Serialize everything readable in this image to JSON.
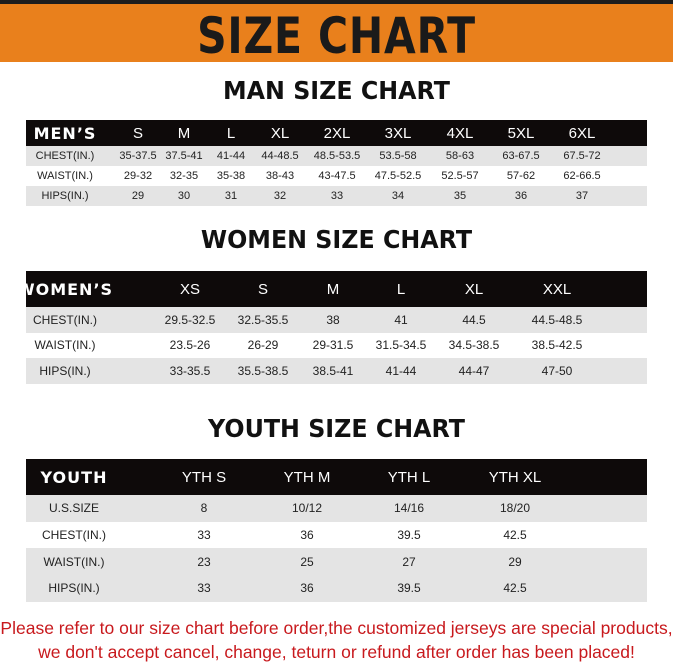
{
  "banner": {
    "title": "SIZE CHART",
    "color": "#e9801c"
  },
  "men": {
    "title": "MAN SIZE CHART",
    "header": [
      "MEN’S",
      "S",
      "M",
      "L",
      "XL",
      "2XL",
      "3XL",
      "4XL",
      "5XL",
      "6XL"
    ],
    "rows": [
      [
        "CHEST(IN.)",
        "35-37.5",
        "37.5-41",
        "41-44",
        "44-48.5",
        "48.5-53.5",
        "53.5-58",
        "58-63",
        "63-67.5",
        "67.5-72"
      ],
      [
        "WAIST(IN.)",
        "29-32",
        "32-35",
        "35-38",
        "38-43",
        "43-47.5",
        "47.5-52.5",
        "52.5-57",
        "57-62",
        "62-66.5"
      ],
      [
        "HIPS(IN.)",
        "29",
        "30",
        "31",
        "32",
        "33",
        "34",
        "35",
        "36",
        "37"
      ]
    ]
  },
  "women": {
    "title": "WOMEN SIZE CHART",
    "header": [
      "WOMEN’S",
      "XS",
      "S",
      "M",
      "L",
      "XL",
      "XXL"
    ],
    "rows": [
      [
        "CHEST(IN.)",
        "29.5-32.5",
        "32.5-35.5",
        "38",
        "41",
        "44.5",
        "44.5-48.5"
      ],
      [
        "WAIST(IN.)",
        "23.5-26",
        "26-29",
        "29-31.5",
        "31.5-34.5",
        "34.5-38.5",
        "38.5-42.5"
      ],
      [
        "HIPS(IN.)",
        "33-35.5",
        "35.5-38.5",
        "38.5-41",
        "41-44",
        "44-47",
        "47-50"
      ]
    ]
  },
  "youth": {
    "title": "YOUTH SIZE CHART",
    "header": [
      "YOUTH",
      "YTH S",
      "YTH M",
      "YTH L",
      "YTH XL"
    ],
    "rows": [
      [
        "U.S.SIZE",
        "8",
        "10/12",
        "14/16",
        "18/20"
      ],
      [
        "CHEST(IN.)",
        "33",
        "36",
        "39.5",
        "42.5"
      ],
      [
        "WAIST(IN.)",
        "23",
        "25",
        "27",
        "29"
      ],
      [
        "HIPS(IN.)",
        "33",
        "36",
        "39.5",
        "42.5"
      ]
    ]
  },
  "footer": {
    "line1": "Please refer to our size chart before order,the customized jerseys are special products,",
    "line2": "we don't accept cancel, change, teturn or refund after order has been placed!",
    "color": "#c8191d"
  }
}
